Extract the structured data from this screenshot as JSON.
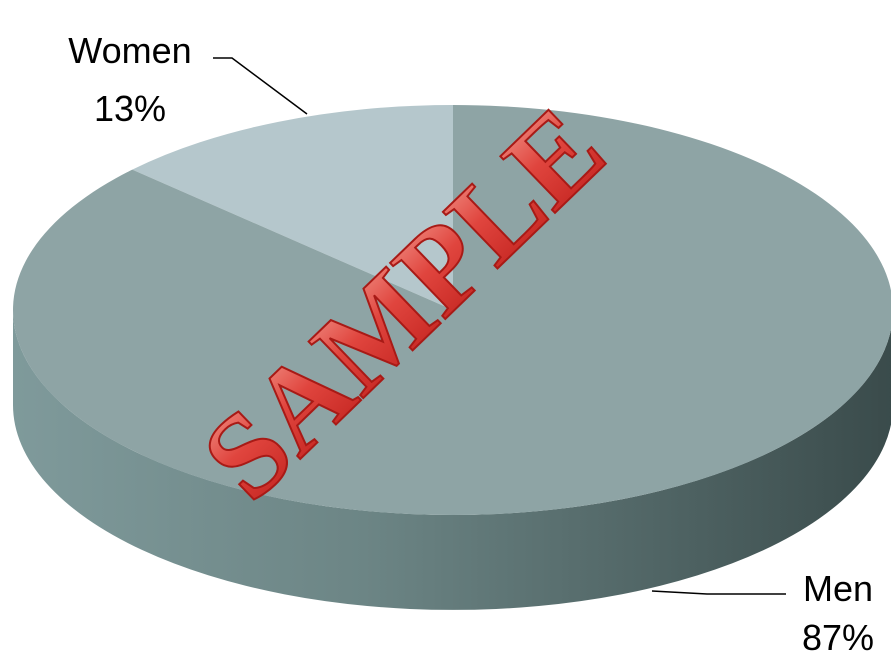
{
  "chart_data": {
    "type": "pie",
    "style": "3d",
    "title": "",
    "slices": [
      {
        "label": "Women",
        "value": 13,
        "percent_label": "13%",
        "color": "#b5c7cc"
      },
      {
        "label": "Men",
        "value": 87,
        "percent_label": "87%",
        "color": "#8ea4a5"
      }
    ],
    "side_colors": {
      "light": "#7f9a9b",
      "dark": "#3a4b4b"
    }
  },
  "watermark": {
    "text": "SAMPLE",
    "color": "#e0453e"
  }
}
